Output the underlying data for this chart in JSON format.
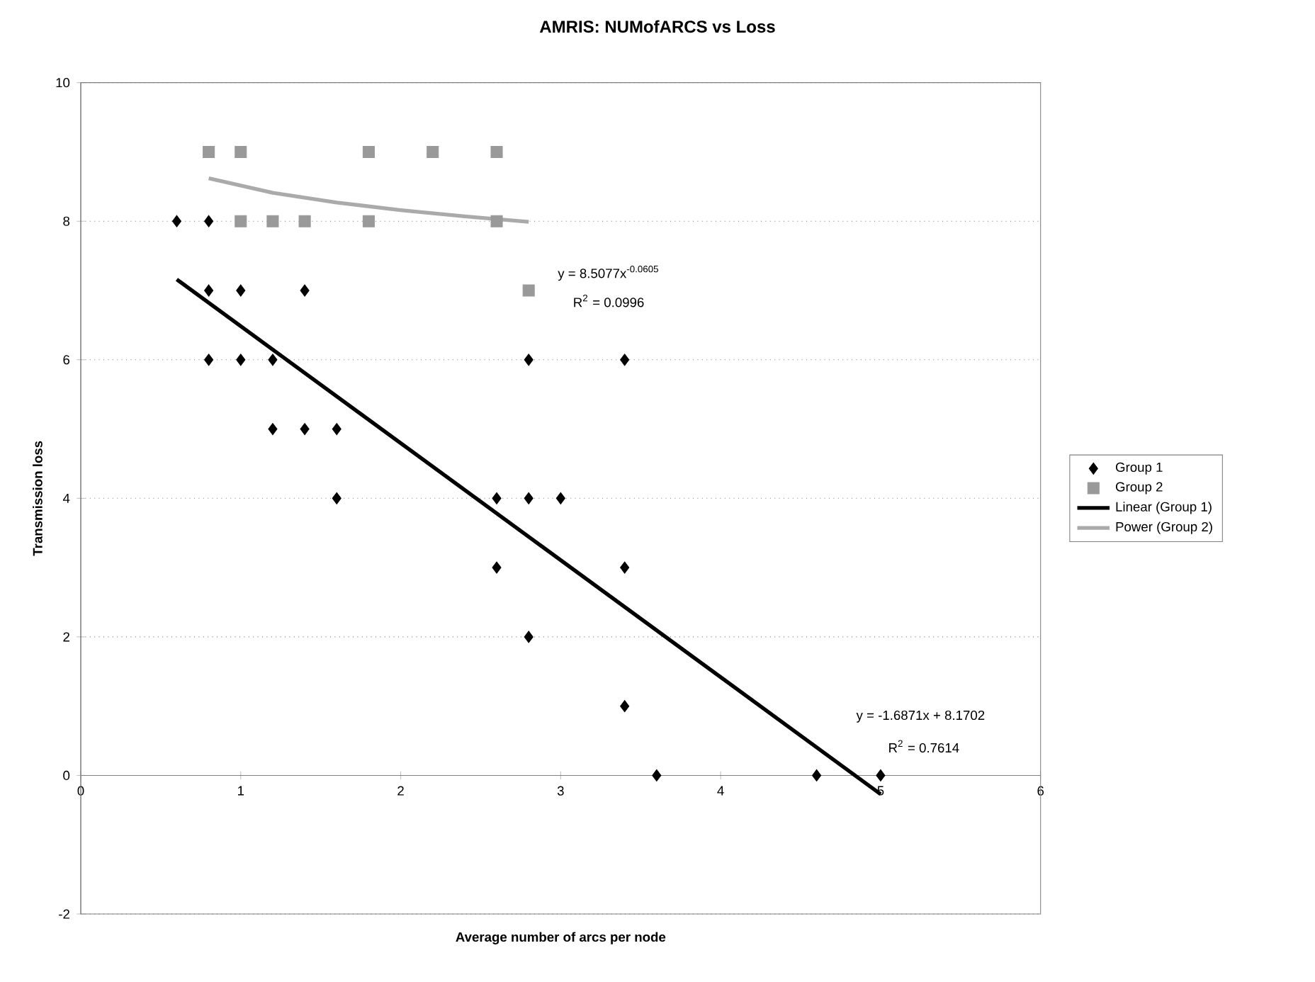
{
  "chart_data": {
    "type": "scatter",
    "title": "AMRIS: NUMofARCS vs Loss",
    "xlabel": "Average number of arcs per node",
    "ylabel": "Transmission loss",
    "xlim": [
      0,
      6
    ],
    "xticks": [
      0,
      1,
      2,
      3,
      4,
      5,
      6
    ],
    "ylim": [
      -2,
      10
    ],
    "yticks": [
      -2,
      0,
      2,
      4,
      6,
      8,
      10
    ],
    "grid": "y",
    "legend": "right",
    "series": [
      {
        "name": "Group 1",
        "marker": "diamond",
        "color": "#000000",
        "x": [
          0.6,
          0.8,
          0.8,
          0.8,
          1,
          1,
          1.2,
          1.2,
          1.4,
          1.4,
          1.6,
          1.6,
          2.6,
          2.6,
          2.8,
          2.8,
          2.8,
          3,
          3.4,
          3.4,
          3.4,
          3.6,
          4.6,
          5
        ],
        "values": [
          8,
          8,
          7,
          6,
          7,
          6,
          6,
          5,
          5,
          7,
          5,
          4,
          4,
          3,
          4,
          2,
          6,
          4,
          6,
          3,
          1,
          0,
          0,
          0
        ]
      },
      {
        "name": "Group 2",
        "marker": "square",
        "color": "#999999",
        "x": [
          0.8,
          1,
          1,
          1.2,
          1.4,
          1.8,
          1.8,
          2.2,
          2.6,
          2.6,
          2.8
        ],
        "values": [
          9,
          9,
          8,
          8,
          8,
          9,
          8,
          9,
          9,
          8,
          7
        ]
      },
      {
        "name": "Linear (Group 1)",
        "type": "line",
        "marker": "none",
        "color": "#000000",
        "x": [
          0.6,
          5
        ],
        "values": [
          7.16,
          -0.27
        ]
      },
      {
        "name": "Power (Group 2)",
        "type": "line",
        "marker": "none",
        "color": "#aaaaaa",
        "x": [
          0.8,
          1.2,
          1.6,
          2,
          2.4,
          2.8
        ],
        "values": [
          8.62,
          8.41,
          8.27,
          8.16,
          8.07,
          7.99
        ]
      }
    ],
    "annotations": [
      "y = 8.5077x$^{-0.0605}$",
      "R$^{2}$ = 0.0996",
      "y = -1.6871x + 8.1702",
      "R$^{2}$ = 0.7614"
    ]
  }
}
